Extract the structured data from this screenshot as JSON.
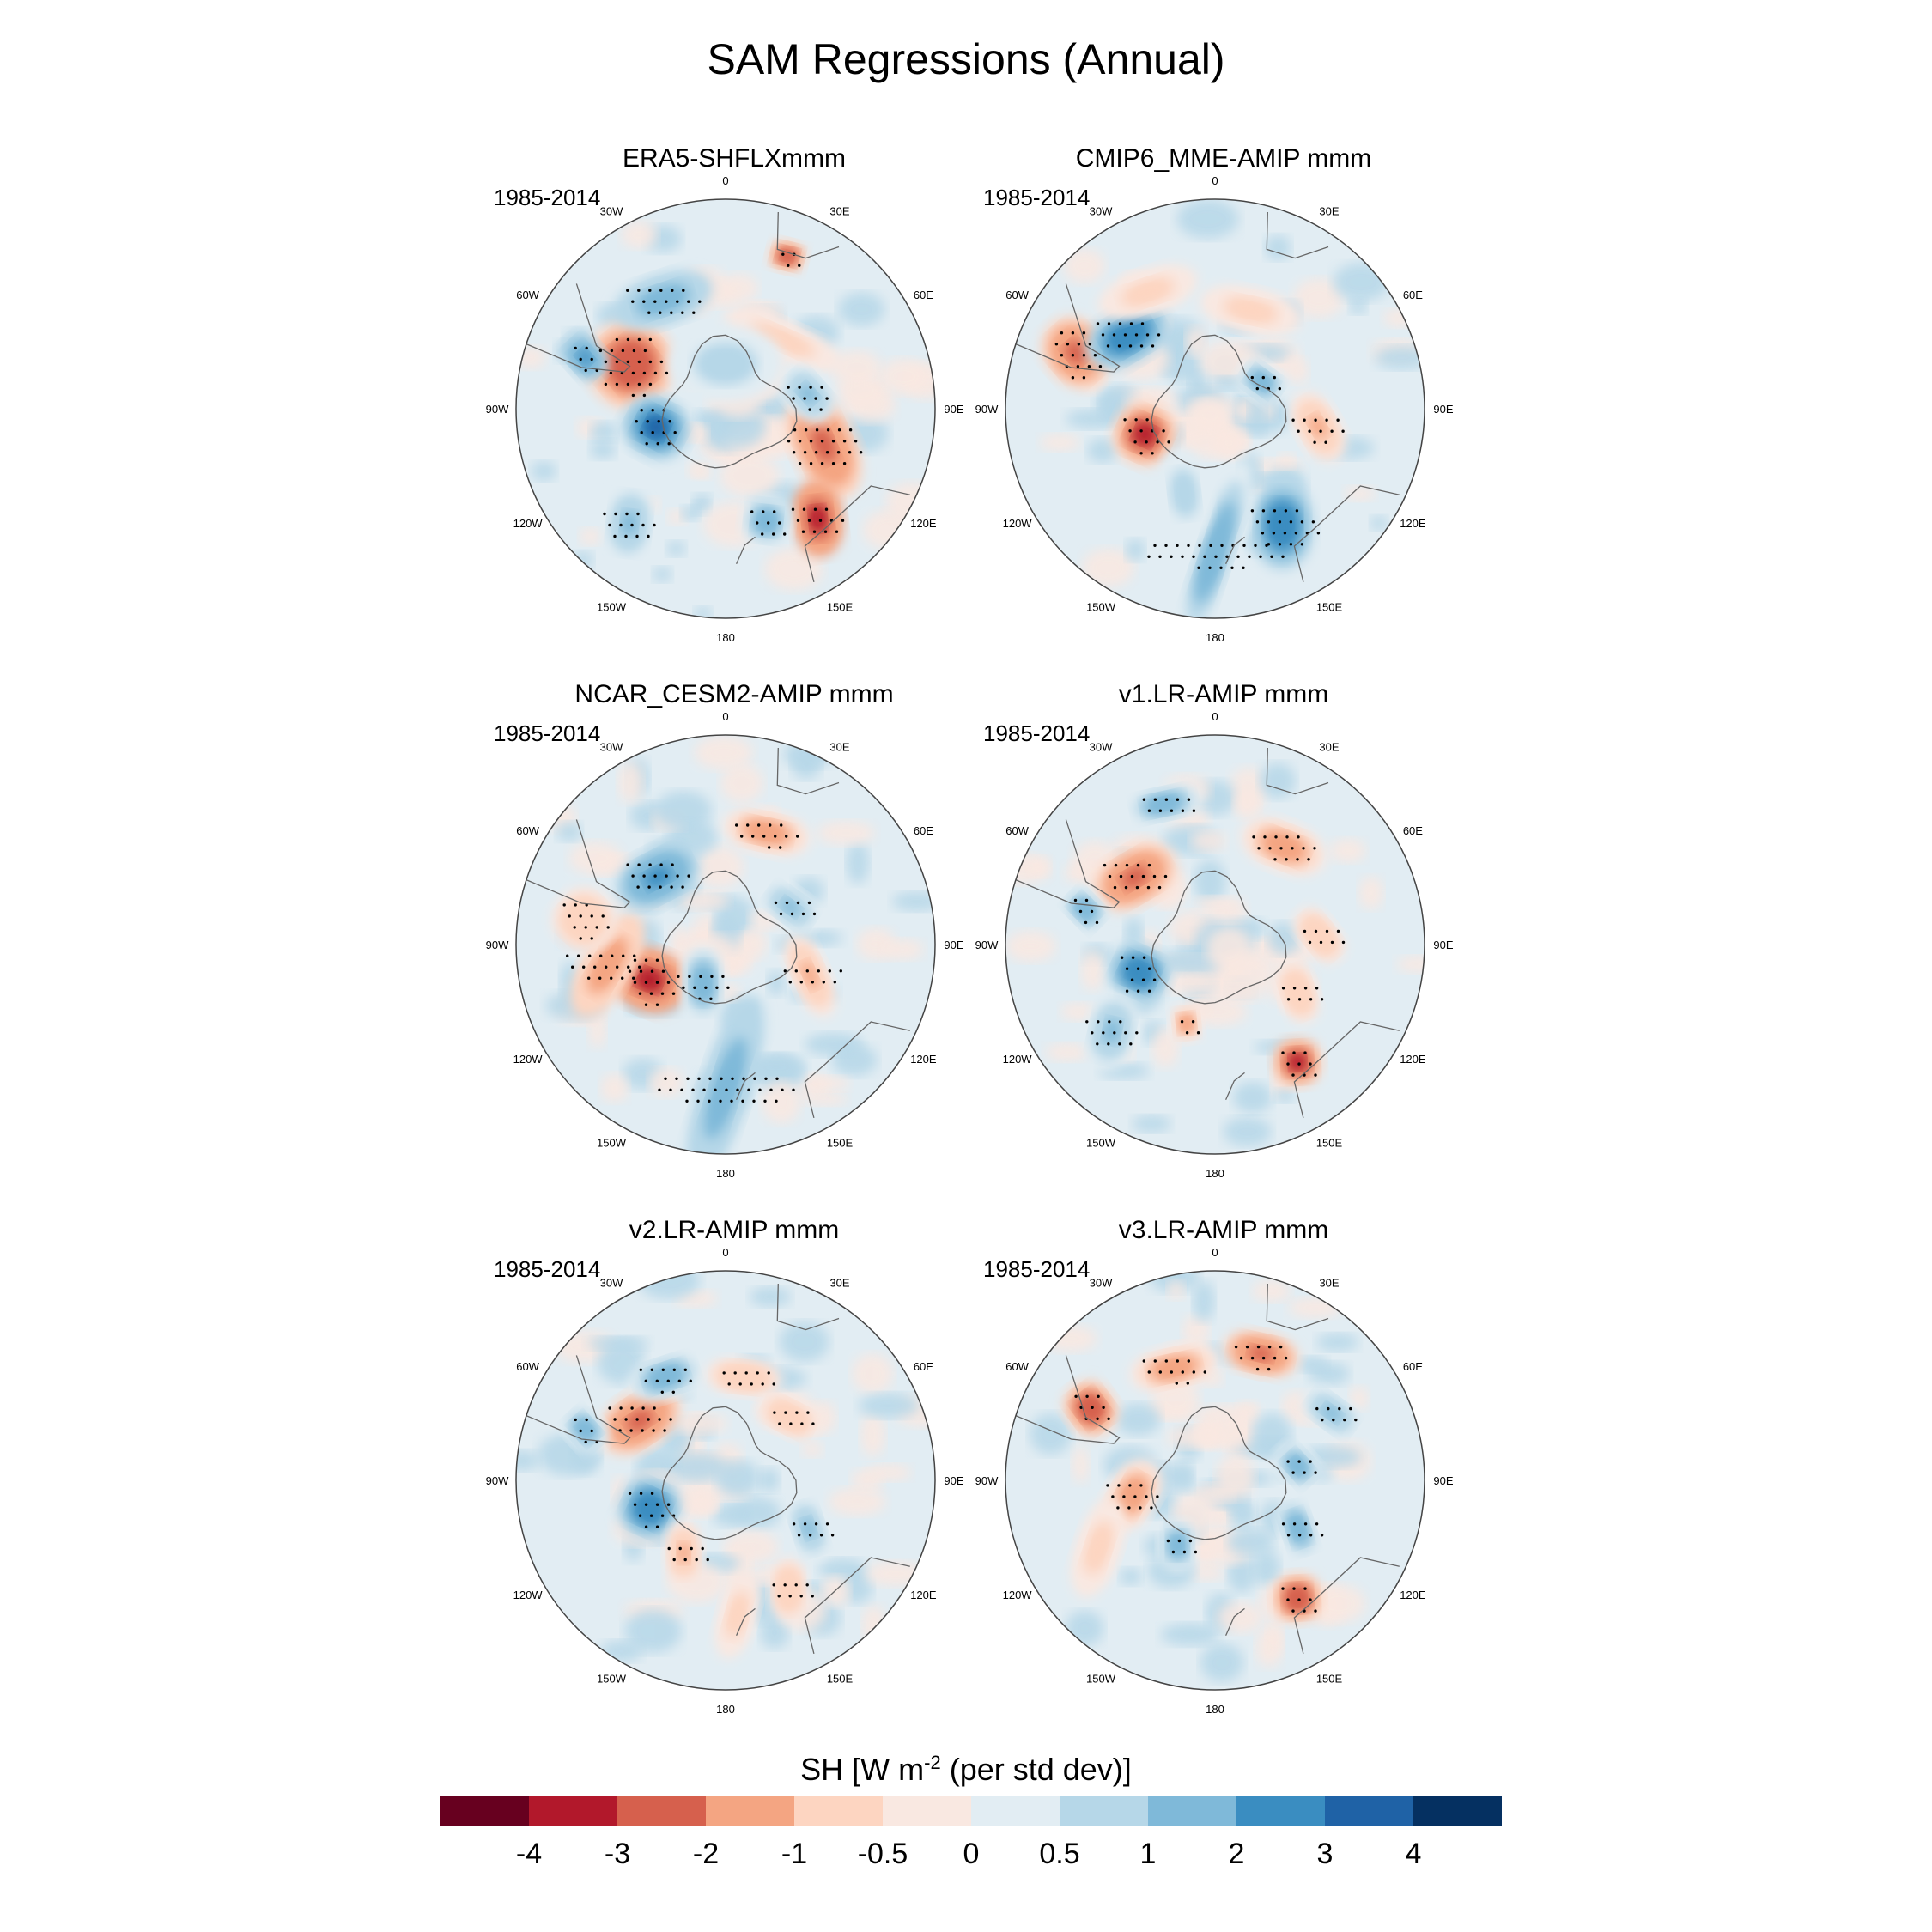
{
  "title": "SAM Regressions (Annual)",
  "period_label": "1985-2014",
  "lon_labels": [
    "0",
    "30E",
    "60E",
    "90E",
    "120E",
    "150E",
    "180",
    "150W",
    "120W",
    "90W",
    "60W",
    "30W"
  ],
  "colorbar": {
    "label_main": "SH [W m",
    "label_sup": "-2",
    "label_tail": " (per std dev)]",
    "colors": [
      "#67001f",
      "#b2182b",
      "#d6604d",
      "#f4a582",
      "#fdd5c1",
      "#f9e8e1",
      "#e2edf3",
      "#b6d7e8",
      "#7fb9d9",
      "#3a8dc1",
      "#1f62a6",
      "#053061"
    ],
    "ticks": [
      "-4",
      "-3",
      "-2",
      "-1",
      "-0.5",
      "0",
      "0.5",
      "1",
      "2",
      "3",
      "4"
    ]
  },
  "chart_data": {
    "type": "contour-map",
    "projection": "south-polar-stereographic",
    "variable": "SH [W m-2 (per std dev)]",
    "levels": [
      -4,
      -3,
      -2,
      -1,
      -0.5,
      0,
      0.5,
      1,
      2,
      3,
      4
    ],
    "panels": [
      {
        "title": "ERA5-SHFLXmmm",
        "period": "1985-2014",
        "blobs": [
          {
            "lon": 110,
            "lat": -55,
            "v": -2.2,
            "w": 0.18,
            "h": 0.1
          },
          {
            "lon": 140,
            "lat": -42,
            "v": -3.5,
            "w": 0.12,
            "h": 0.08
          },
          {
            "lon": 22,
            "lat": -35,
            "v": -3,
            "w": 0.06,
            "h": 0.05
          },
          {
            "lon": -65,
            "lat": -55,
            "v": -2.8,
            "w": 0.14,
            "h": 0.14
          },
          {
            "lon": -30,
            "lat": -48,
            "v": 1.8,
            "w": 0.16,
            "h": 0.08
          },
          {
            "lon": -105,
            "lat": -66,
            "v": 3,
            "w": 0.1,
            "h": 0.11
          },
          {
            "lon": -70,
            "lat": -40,
            "v": 2.2,
            "w": 0.06,
            "h": 0.08
          },
          {
            "lon": 40,
            "lat": -60,
            "v": -0.9,
            "w": 0.2,
            "h": 0.06
          },
          {
            "lon": 80,
            "lat": -62,
            "v": 1.2,
            "w": 0.1,
            "h": 0.07
          },
          {
            "lon": -140,
            "lat": -40,
            "v": 1.1,
            "w": 0.12,
            "h": 0.08
          },
          {
            "lon": 160,
            "lat": -50,
            "v": 1.5,
            "w": 0.08,
            "h": 0.08
          },
          {
            "lon": 0,
            "lat": -75,
            "v": 0.8,
            "w": 0.18,
            "h": 0.12
          }
        ]
      },
      {
        "title": "CMIP6_MME-AMIP  mmm",
        "period": "1985-2014",
        "blobs": [
          {
            "lon": -68,
            "lat": -40,
            "v": -2.5,
            "w": 0.1,
            "h": 0.12
          },
          {
            "lon": -50,
            "lat": -52,
            "v": 2.5,
            "w": 0.14,
            "h": 0.09
          },
          {
            "lon": -110,
            "lat": -65,
            "v": -3.2,
            "w": 0.1,
            "h": 0.1
          },
          {
            "lon": 150,
            "lat": -45,
            "v": 2.8,
            "w": 0.14,
            "h": 0.1
          },
          {
            "lon": 180,
            "lat": -42,
            "v": 1.4,
            "w": 0.3,
            "h": 0.07
          },
          {
            "lon": 100,
            "lat": -55,
            "v": -1.2,
            "w": 0.12,
            "h": 0.07
          },
          {
            "lon": 20,
            "lat": -55,
            "v": -0.9,
            "w": 0.16,
            "h": 0.07
          },
          {
            "lon": -30,
            "lat": -45,
            "v": -0.7,
            "w": 0.16,
            "h": 0.07
          },
          {
            "lon": 60,
            "lat": -72,
            "v": 1.6,
            "w": 0.08,
            "h": 0.06
          },
          {
            "lon": -160,
            "lat": -60,
            "v": 0.9,
            "w": 0.14,
            "h": 0.08
          }
        ]
      },
      {
        "title": "NCAR_CESM2-AMIP  mmm",
        "period": "1985-2014",
        "blobs": [
          {
            "lon": -115,
            "lat": -62,
            "v": -3.4,
            "w": 0.1,
            "h": 0.12
          },
          {
            "lon": -100,
            "lat": -50,
            "v": -1.8,
            "w": 0.18,
            "h": 0.08
          },
          {
            "lon": -45,
            "lat": -58,
            "v": 2.2,
            "w": 0.14,
            "h": 0.09
          },
          {
            "lon": 180,
            "lat": -42,
            "v": 1.8,
            "w": 0.3,
            "h": 0.08
          },
          {
            "lon": 20,
            "lat": -50,
            "v": -1.5,
            "w": 0.14,
            "h": 0.07
          },
          {
            "lon": 110,
            "lat": -60,
            "v": -1.2,
            "w": 0.14,
            "h": 0.06
          },
          {
            "lon": -150,
            "lat": -75,
            "v": 1.4,
            "w": 0.12,
            "h": 0.07
          },
          {
            "lon": 60,
            "lat": -65,
            "v": 1,
            "w": 0.1,
            "h": 0.06
          },
          {
            "lon": -80,
            "lat": -42,
            "v": -1,
            "w": 0.1,
            "h": 0.1
          }
        ]
      },
      {
        "title": "v1.LR-AMIP  mmm",
        "period": "1985-2014",
        "blobs": [
          {
            "lon": -50,
            "lat": -55,
            "v": -2.2,
            "w": 0.14,
            "h": 0.09
          },
          {
            "lon": 145,
            "lat": -42,
            "v": -3.3,
            "w": 0.08,
            "h": 0.08
          },
          {
            "lon": -110,
            "lat": -63,
            "v": 2.6,
            "w": 0.09,
            "h": 0.1
          },
          {
            "lon": 35,
            "lat": -50,
            "v": -1.4,
            "w": 0.14,
            "h": 0.08
          },
          {
            "lon": -20,
            "lat": -40,
            "v": 1.4,
            "w": 0.12,
            "h": 0.06
          },
          {
            "lon": -130,
            "lat": -45,
            "v": 1.2,
            "w": 0.12,
            "h": 0.08
          },
          {
            "lon": -75,
            "lat": -45,
            "v": 1.5,
            "w": 0.06,
            "h": 0.08
          },
          {
            "lon": 85,
            "lat": -55,
            "v": -1,
            "w": 0.1,
            "h": 0.06
          },
          {
            "lon": -160,
            "lat": -62,
            "v": -1.5,
            "w": 0.06,
            "h": 0.05
          },
          {
            "lon": 120,
            "lat": -58,
            "v": -1,
            "w": 0.1,
            "h": 0.06
          }
        ]
      },
      {
        "title": "v2.LR-AMIP  mmm",
        "period": "1985-2014",
        "blobs": [
          {
            "lon": -55,
            "lat": -55,
            "v": -2.2,
            "w": 0.14,
            "h": 0.09
          },
          {
            "lon": -110,
            "lat": -63,
            "v": 2.5,
            "w": 0.1,
            "h": 0.1
          },
          {
            "lon": -30,
            "lat": -50,
            "v": 1.6,
            "w": 0.12,
            "h": 0.07
          },
          {
            "lon": -70,
            "lat": -40,
            "v": 1.5,
            "w": 0.06,
            "h": 0.08
          },
          {
            "lon": 150,
            "lat": -48,
            "v": -1,
            "w": 0.1,
            "h": 0.06
          },
          {
            "lon": 120,
            "lat": -58,
            "v": 1.2,
            "w": 0.1,
            "h": 0.06
          },
          {
            "lon": 10,
            "lat": -55,
            "v": -1,
            "w": 0.12,
            "h": 0.06
          },
          {
            "lon": -150,
            "lat": -62,
            "v": -1.1,
            "w": 0.1,
            "h": 0.06
          },
          {
            "lon": 45,
            "lat": -60,
            "v": -1,
            "w": 0.1,
            "h": 0.06
          },
          {
            "lon": 175,
            "lat": -45,
            "v": -0.8,
            "w": 0.14,
            "h": 0.06
          }
        ]
      },
      {
        "title": "v3.LR-AMIP  mmm",
        "period": "1985-2014",
        "blobs": [
          {
            "lon": -60,
            "lat": -42,
            "v": -2.6,
            "w": 0.08,
            "h": 0.09
          },
          {
            "lon": 145,
            "lat": -42,
            "v": -3,
            "w": 0.08,
            "h": 0.08
          },
          {
            "lon": 20,
            "lat": -45,
            "v": -2.2,
            "w": 0.12,
            "h": 0.07
          },
          {
            "lon": -20,
            "lat": -50,
            "v": -1.6,
            "w": 0.14,
            "h": 0.07
          },
          {
            "lon": -100,
            "lat": -62,
            "v": -1.5,
            "w": 0.12,
            "h": 0.08
          },
          {
            "lon": 120,
            "lat": -58,
            "v": 1.4,
            "w": 0.1,
            "h": 0.06
          },
          {
            "lon": -150,
            "lat": -65,
            "v": 1.4,
            "w": 0.08,
            "h": 0.06
          },
          {
            "lon": 80,
            "lat": -62,
            "v": 1.6,
            "w": 0.08,
            "h": 0.06
          },
          {
            "lon": -120,
            "lat": -45,
            "v": -0.8,
            "w": 0.16,
            "h": 0.07
          },
          {
            "lon": 60,
            "lat": -45,
            "v": 1,
            "w": 0.1,
            "h": 0.06
          }
        ]
      }
    ]
  }
}
